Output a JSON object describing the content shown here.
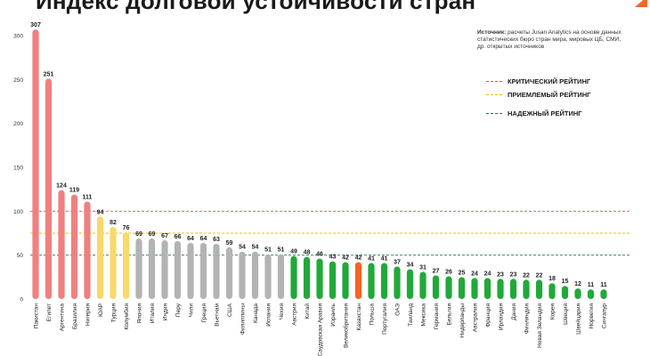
{
  "title": "Индекс долговой устойчивости стран",
  "source": {
    "label": "Источник:",
    "text": "расчеты Jusan Analytics на основе данных статистических бюро стран мира, мировых ЦБ, СМИ, др. открытых источников"
  },
  "legend": [
    {
      "label": "КРИТИЧЕСКИЙ РЕЙТИНГ",
      "color": "#d9534f"
    },
    {
      "label": "ПРИЕМЛЕМЫЙ РЕЙТИНГ",
      "color": "#e5c400"
    },
    {
      "label": "НАДЕЖНЫЙ РЕЙТИНГ",
      "color": "#1f7a3a"
    }
  ],
  "colors": {
    "critical": "#f08080",
    "acceptable": "#f7d96b",
    "neutral": "#b3b3b3",
    "reliable": "#22a83a",
    "highlight": "#f26522",
    "brand": "#f26522"
  },
  "chart_data": {
    "type": "bar",
    "title": "Индекс долговой устойчивости стран",
    "xlabel": "",
    "ylabel": "",
    "ylim": [
      0,
      310
    ],
    "yticks": [
      0,
      50,
      100,
      150,
      200,
      250,
      300
    ],
    "grid": false,
    "legend_position": "right",
    "reference_lines": [
      {
        "label": "КРИТИЧЕСКИЙ РЕЙТИНГ",
        "value": 100,
        "color": "#d9534f"
      },
      {
        "label": "ПРИЕМЛЕМЫЙ РЕЙТИНГ",
        "value": 75,
        "color": "#e5c400"
      },
      {
        "label": "НАДЕЖНЫЙ РЕЙТИНГ",
        "value": 50,
        "color": "#1f7a3a"
      }
    ],
    "categories": [
      "Пакистан",
      "Египет",
      "Аргентина",
      "Бразилия",
      "Нигерия",
      "ЮАР",
      "Турция",
      "Колумбия",
      "Япония",
      "Италия",
      "Индия",
      "Перу",
      "Чили",
      "Греция",
      "Вьетнам",
      "США",
      "Филиппины",
      "Канада",
      "Испания",
      "Чехия",
      "Австрия",
      "Китай",
      "Саудовская Аравия",
      "Израиль",
      "Великобритания",
      "Казахстан",
      "Польша",
      "Португалия",
      "ОАЭ",
      "Таиланд",
      "Мексика",
      "Германия",
      "Бельгия",
      "Нидерланды",
      "Австралия",
      "Франция",
      "Ирландия",
      "Дания",
      "Финляндия",
      "Новая Зеландия",
      "Корея",
      "Швеция",
      "Швейцария",
      "Норвегия",
      "Сингапур"
    ],
    "values": [
      307,
      251,
      124,
      119,
      111,
      94,
      82,
      76,
      69,
      69,
      67,
      66,
      64,
      64,
      63,
      59,
      54,
      54,
      51,
      51,
      49,
      48,
      46,
      43,
      42,
      42,
      41,
      41,
      37,
      34,
      31,
      27,
      26,
      25,
      24,
      24,
      23,
      23,
      22,
      22,
      18,
      15,
      12,
      11,
      11
    ],
    "bar_colors": [
      "critical",
      "critical",
      "critical",
      "critical",
      "critical",
      "acceptable",
      "acceptable",
      "acceptable",
      "neutral",
      "neutral",
      "neutral",
      "neutral",
      "neutral",
      "neutral",
      "neutral",
      "neutral",
      "neutral",
      "neutral",
      "neutral",
      "neutral",
      "reliable",
      "reliable",
      "reliable",
      "reliable",
      "reliable",
      "highlight",
      "reliable",
      "reliable",
      "reliable",
      "reliable",
      "reliable",
      "reliable",
      "reliable",
      "reliable",
      "reliable",
      "reliable",
      "reliable",
      "reliable",
      "reliable",
      "reliable",
      "reliable",
      "reliable",
      "reliable",
      "reliable",
      "reliable"
    ]
  }
}
